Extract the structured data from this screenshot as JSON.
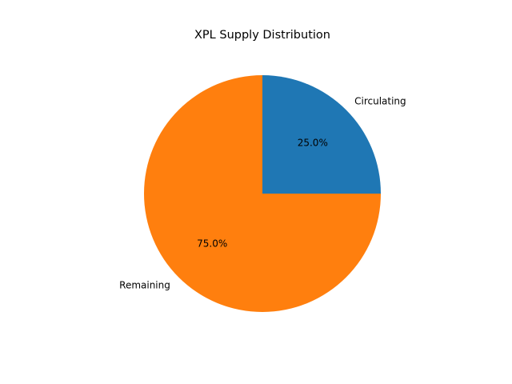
{
  "chart_data": {
    "type": "pie",
    "title": "XPL Supply Distribution",
    "categories": [
      "Circulating",
      "Remaining"
    ],
    "values": [
      25,
      75
    ],
    "value_labels": [
      "25.0%",
      "75.0%"
    ],
    "colors": [
      "#1f77b4",
      "#ff7f0e"
    ]
  }
}
